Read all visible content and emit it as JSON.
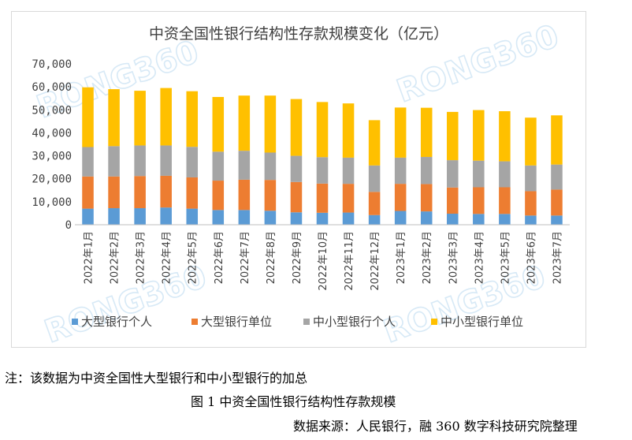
{
  "chart_data": {
    "type": "bar",
    "stacked": true,
    "title": "中资全国性银行结构性存款规模变化（亿元）",
    "categories": [
      "2022年1月",
      "2022年2月",
      "2022年3月",
      "2022年4月",
      "2022年5月",
      "2022年6月",
      "2022年7月",
      "2022年8月",
      "2022年9月",
      "2022年10月",
      "2022年11月",
      "2022年12月",
      "2023年1月",
      "2023年2月",
      "2023年3月",
      "2023年4月",
      "2023年5月",
      "2023年6月",
      "2023年7月"
    ],
    "y_ticks": [
      "0",
      "10,000",
      "20,000",
      "30,000",
      "40,000",
      "50,000",
      "60,000",
      "70,000"
    ],
    "ylim": [
      0,
      70000
    ],
    "series": [
      {
        "name": "大型银行个人",
        "color": "#5b9bd5",
        "values": [
          7000,
          7200,
          7200,
          7500,
          7000,
          6400,
          6400,
          6100,
          5400,
          5200,
          5300,
          4200,
          6000,
          5800,
          4800,
          4700,
          4700,
          4000,
          4000
        ]
      },
      {
        "name": "大型银行单位",
        "color": "#ed7d31",
        "values": [
          14000,
          13800,
          14000,
          13800,
          13600,
          12800,
          13200,
          13400,
          13200,
          12700,
          12500,
          10100,
          11800,
          11900,
          11400,
          11600,
          11600,
          10600,
          11300
        ]
      },
      {
        "name": "中小型银行个人",
        "color": "#a5a5a5",
        "values": [
          12800,
          13200,
          13300,
          13200,
          13300,
          12600,
          12600,
          11900,
          11400,
          11500,
          11400,
          11500,
          11400,
          11800,
          11900,
          11600,
          11300,
          11200,
          10900
        ]
      },
      {
        "name": "中小型银行单位",
        "color": "#ffc000",
        "values": [
          26000,
          24800,
          23800,
          25000,
          24200,
          23800,
          24000,
          24800,
          24700,
          24000,
          23600,
          19700,
          21800,
          21400,
          21000,
          22000,
          21800,
          20800,
          21400
        ]
      }
    ],
    "legend_position": "bottom",
    "grid": false
  },
  "watermark": "RONG360",
  "notes": {
    "footnote": "注：该数据为中资全国性大型银行和中小型银行的加总",
    "caption": "图 1 中资全国性银行结构性存款规模",
    "source": "数据来源：人民银行，融 360 数字科技研究院整理"
  }
}
